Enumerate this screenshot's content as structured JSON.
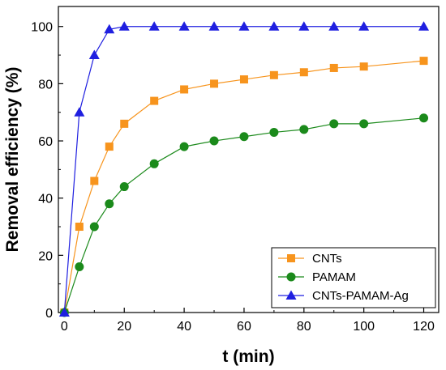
{
  "chart_data": {
    "type": "line",
    "xlabel": "t (min)",
    "ylabel": "Removal efficiency (%)",
    "xlim": [
      -2,
      125
    ],
    "ylim": [
      0,
      107
    ],
    "xticks": [
      "0",
      "20",
      "40",
      "60",
      "80",
      "100",
      "120"
    ],
    "yticks": [
      "0",
      "20",
      "40",
      "60",
      "80",
      "100"
    ],
    "grid": false,
    "legend_position": "bottom-right",
    "series": [
      {
        "name": "CNTs",
        "color": "#f7941d",
        "marker": "square",
        "x": [
          0,
          5,
          10,
          15,
          20,
          30,
          40,
          50,
          60,
          70,
          80,
          90,
          100,
          120
        ],
        "y": [
          0,
          30,
          46,
          58,
          66,
          74,
          78,
          80,
          81.5,
          83,
          84,
          85.5,
          86,
          88
        ]
      },
      {
        "name": "PAMAM",
        "color": "#1b8a1b",
        "marker": "circle",
        "x": [
          0,
          5,
          10,
          15,
          20,
          30,
          40,
          50,
          60,
          70,
          80,
          90,
          100,
          120
        ],
        "y": [
          0,
          16,
          30,
          38,
          44,
          52,
          58,
          60,
          61.5,
          63,
          64,
          66,
          66,
          68
        ]
      },
      {
        "name": "CNTs-PAMAM-Ag",
        "color": "#1f1fe0",
        "marker": "triangle",
        "x": [
          0,
          5,
          10,
          15,
          20,
          30,
          40,
          50,
          60,
          70,
          80,
          90,
          100,
          120
        ],
        "y": [
          0,
          70,
          90,
          99,
          100,
          100,
          100,
          100,
          100,
          100,
          100,
          100,
          100,
          100
        ]
      }
    ]
  }
}
